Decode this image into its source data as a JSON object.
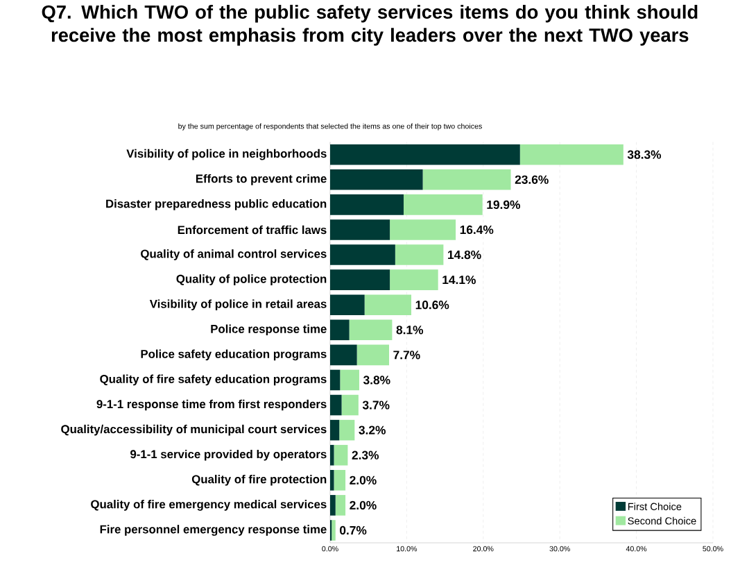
{
  "chart_data": {
    "type": "bar",
    "orientation": "horizontal",
    "stacked": true,
    "title": "Q7. Which TWO of the public safety services items do you think should receive the most emphasis from city leaders over the next TWO years",
    "subtitle": "by the sum percentage of respondents that selected the items as one of their top two choices",
    "categories": [
      "Visibility of police in neighborhoods",
      "Efforts to prevent crime",
      "Disaster preparedness public education",
      "Enforcement of traffic laws",
      "Quality of animal control services",
      "Quality of police protection",
      "Visibility of police in retail areas",
      "Police response time",
      "Police safety education programs",
      "Quality of fire safety education programs",
      "9-1-1 response time from first responders",
      "Quality/accessibility of municipal court services",
      "9-1-1 service provided by operators",
      "Quality of fire protection",
      "Quality of fire emergency medical services",
      "Fire personnel emergency response time"
    ],
    "series": [
      {
        "name": "First Choice",
        "color": "#003b36",
        "values": [
          24.8,
          12.1,
          9.6,
          7.8,
          8.5,
          7.8,
          4.5,
          2.5,
          3.5,
          1.3,
          1.5,
          1.2,
          0.5,
          0.5,
          0.7,
          0.2
        ]
      },
      {
        "name": "Second Choice",
        "color": "#a0e8a0",
        "values": [
          13.5,
          11.5,
          10.3,
          8.6,
          6.3,
          6.3,
          6.1,
          5.6,
          4.2,
          2.5,
          2.2,
          2.0,
          1.8,
          1.5,
          1.3,
          0.5
        ]
      }
    ],
    "totals": [
      "38.3%",
      "23.6%",
      "19.9%",
      "16.4%",
      "14.8%",
      "14.1%",
      "10.6%",
      "8.1%",
      "7.7%",
      "3.8%",
      "3.7%",
      "3.2%",
      "2.3%",
      "2.0%",
      "2.0%",
      "0.7%"
    ],
    "xlim": [
      0,
      50
    ],
    "xticks": [
      {
        "value": 0,
        "label": "0.0%"
      },
      {
        "value": 10,
        "label": "10.0%"
      },
      {
        "value": 20,
        "label": "20.0%"
      },
      {
        "value": 30,
        "label": "30.0%"
      },
      {
        "value": 40,
        "label": "40.0%"
      },
      {
        "value": 50,
        "label": "50.0%"
      }
    ],
    "grid": "x",
    "legend": "bottom right"
  }
}
